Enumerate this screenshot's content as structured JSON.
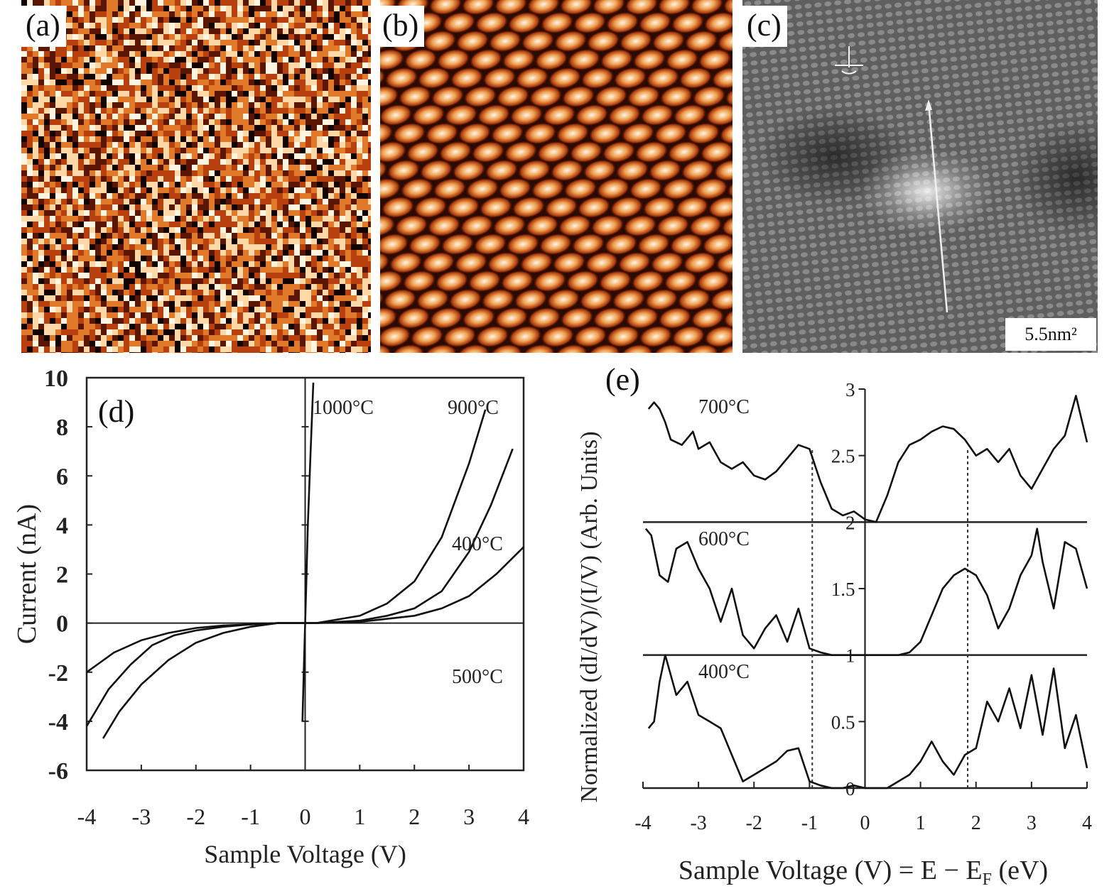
{
  "panels": {
    "a": {
      "label": "(a)"
    },
    "b": {
      "label": "(b)"
    },
    "c": {
      "label": "(c)",
      "scale_label": "5.5nm²"
    },
    "d": {
      "label": "(d)"
    },
    "e": {
      "label": "(e)"
    }
  },
  "image_colors": {
    "stm_dark": "#140400",
    "stm_mid": "#b8400f",
    "stm_bright": "#fff0d8",
    "gray_base": "#6a6a6a"
  },
  "chart_data": [
    {
      "panel": "d",
      "type": "line",
      "xlabel": "Sample Voltage (V)",
      "ylabel": "Current (nA)",
      "xlim": [
        -4,
        4
      ],
      "ylim": [
        -6,
        10
      ],
      "xticks": [
        "-4",
        "-3",
        "-2",
        "-1",
        "0",
        "1",
        "2",
        "3",
        "4"
      ],
      "yticks": [
        "-6",
        "-4",
        "-2",
        "0",
        "2",
        "4",
        "6",
        "8",
        "10"
      ],
      "annotations": [
        "1000°C",
        "900°C",
        "400°C",
        "500°C"
      ],
      "series": [
        {
          "name": "900°C",
          "x": [
            -4.0,
            -3.5,
            -3.0,
            -2.5,
            -2.0,
            -1.5,
            -1.0,
            -0.5,
            0.2,
            1.0,
            1.5,
            2.0,
            2.5,
            3.0,
            3.3
          ],
          "y": [
            -2.0,
            -1.2,
            -0.7,
            -0.4,
            -0.2,
            -0.1,
            -0.05,
            0,
            0,
            0.3,
            0.8,
            1.7,
            3.5,
            6.5,
            8.7
          ]
        },
        {
          "name": "400°C",
          "x": [
            -4.0,
            -3.6,
            -3.2,
            -2.8,
            -2.4,
            -2.0,
            -1.5,
            -1.0,
            -0.5,
            0.2,
            1.0,
            1.5,
            2.0,
            2.5,
            3.0,
            3.4,
            3.8
          ],
          "y": [
            -4.2,
            -2.7,
            -1.7,
            -0.9,
            -0.5,
            -0.3,
            -0.15,
            -0.05,
            0,
            0,
            0.1,
            0.3,
            0.6,
            1.3,
            2.9,
            4.8,
            7.1
          ]
        },
        {
          "name": "500°C",
          "x": [
            -3.7,
            -3.4,
            -3.0,
            -2.5,
            -2.0,
            -1.5,
            -1.0,
            -0.5,
            0.2,
            1.0,
            2.0,
            2.5,
            3.0,
            3.5,
            4.0
          ],
          "y": [
            -4.7,
            -3.6,
            -2.5,
            -1.5,
            -0.8,
            -0.4,
            -0.15,
            0,
            0,
            0.05,
            0.3,
            0.6,
            1.1,
            2.0,
            3.1
          ]
        },
        {
          "name": "1000°C",
          "x": [
            -0.05,
            -0.02,
            0,
            0.02,
            0.05,
            0.1,
            0.15
          ],
          "y": [
            -4.0,
            -1.5,
            0,
            1.5,
            4.0,
            7.0,
            9.8
          ]
        }
      ]
    },
    {
      "panel": "e",
      "type": "line",
      "xlabel": "Sample Voltage (V) = E − E",
      "xlabel_sub": "F",
      "xlabel_tail": " (eV)",
      "ylabel": "Normalized (dI/dV)/(I/V) (Arb. Units)",
      "xlim": [
        -4,
        4
      ],
      "ylim": [
        0,
        3
      ],
      "xticks": [
        "-4",
        "-3",
        "-2",
        "-1",
        "0",
        "1",
        "2",
        "3",
        "4"
      ],
      "yticks": [
        "0",
        "0.5",
        "1",
        "1.5",
        "2",
        "2.5",
        "3"
      ],
      "annotations": [
        "700°C",
        "600°C",
        "400°C"
      ],
      "dashed_x": [
        -0.95,
        1.85
      ],
      "series": [
        {
          "name": "700°C",
          "x": [
            -3.9,
            -3.8,
            -3.7,
            -3.6,
            -3.5,
            -3.3,
            -3.1,
            -3.0,
            -2.8,
            -2.6,
            -2.4,
            -2.2,
            -2.0,
            -1.8,
            -1.6,
            -1.4,
            -1.2,
            -1.0,
            -0.8,
            -0.6,
            -0.4,
            -0.2,
            0.0,
            0.2,
            0.4,
            0.6,
            0.8,
            1.0,
            1.2,
            1.4,
            1.6,
            1.8,
            2.0,
            2.2,
            2.4,
            2.6,
            2.8,
            3.0,
            3.2,
            3.4,
            3.6,
            3.8,
            4.0
          ],
          "y": [
            2.85,
            2.9,
            2.85,
            2.75,
            2.62,
            2.58,
            2.68,
            2.55,
            2.6,
            2.45,
            2.4,
            2.45,
            2.35,
            2.32,
            2.38,
            2.48,
            2.58,
            2.55,
            2.3,
            2.1,
            2.05,
            2.08,
            2.02,
            2.0,
            2.2,
            2.45,
            2.58,
            2.62,
            2.68,
            2.72,
            2.7,
            2.62,
            2.5,
            2.55,
            2.45,
            2.55,
            2.35,
            2.25,
            2.4,
            2.55,
            2.65,
            2.95,
            2.6
          ]
        },
        {
          "name": "600°C",
          "x": [
            -3.95,
            -3.85,
            -3.7,
            -3.55,
            -3.4,
            -3.2,
            -3.0,
            -2.8,
            -2.6,
            -2.4,
            -2.2,
            -2.0,
            -1.8,
            -1.6,
            -1.4,
            -1.2,
            -1.0,
            -0.8,
            -0.6,
            -0.4,
            -0.2,
            0.0,
            0.2,
            0.4,
            0.6,
            0.8,
            1.0,
            1.2,
            1.4,
            1.6,
            1.8,
            2.0,
            2.2,
            2.4,
            2.6,
            2.8,
            3.0,
            3.1,
            3.2,
            3.4,
            3.6,
            3.8,
            4.0
          ],
          "y": [
            1.95,
            1.9,
            1.6,
            1.55,
            1.8,
            1.85,
            1.65,
            1.5,
            1.25,
            1.5,
            1.15,
            1.05,
            1.2,
            1.3,
            1.1,
            1.35,
            1.05,
            1.02,
            1.0,
            1.0,
            1.0,
            1.0,
            1.0,
            1.0,
            1.0,
            1.02,
            1.1,
            1.3,
            1.5,
            1.6,
            1.65,
            1.6,
            1.45,
            1.2,
            1.35,
            1.6,
            1.75,
            1.95,
            1.7,
            1.35,
            1.85,
            1.8,
            1.5
          ]
        },
        {
          "name": "400°C",
          "x": [
            -3.9,
            -3.8,
            -3.7,
            -3.6,
            -3.5,
            -3.4,
            -3.2,
            -3.0,
            -2.8,
            -2.6,
            -2.4,
            -2.2,
            -2.0,
            -1.8,
            -1.6,
            -1.4,
            -1.2,
            -1.0,
            -0.8,
            -0.6,
            -0.4,
            -0.2,
            0.0,
            0.2,
            0.4,
            0.6,
            0.8,
            1.0,
            1.2,
            1.4,
            1.6,
            1.8,
            2.0,
            2.2,
            2.4,
            2.6,
            2.8,
            3.0,
            3.2,
            3.4,
            3.6,
            3.8,
            4.0
          ],
          "y": [
            0.45,
            0.5,
            0.8,
            1.0,
            0.85,
            0.7,
            0.8,
            0.55,
            0.5,
            0.45,
            0.25,
            0.05,
            0.1,
            0.15,
            0.2,
            0.28,
            0.3,
            0.05,
            0.02,
            0.0,
            0.0,
            0.02,
            0.0,
            0.0,
            0.0,
            0.05,
            0.1,
            0.2,
            0.35,
            0.2,
            0.1,
            0.25,
            0.3,
            0.65,
            0.5,
            0.75,
            0.45,
            0.85,
            0.4,
            0.9,
            0.3,
            0.55,
            0.15
          ]
        }
      ]
    }
  ]
}
